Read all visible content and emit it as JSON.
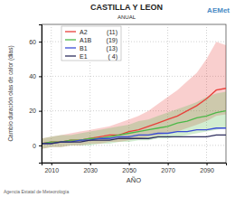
{
  "chart_data": {
    "type": "line",
    "title": "CASTILLA Y LEON",
    "subtitle": "ANUAL",
    "x_label": "AÑO",
    "y_label": "Cambio duración olas de calor (días)",
    "source": "Agencia Estatal de Meteorología",
    "brand": "AEMet",
    "x": [
      2005,
      2010,
      2015,
      2020,
      2025,
      2030,
      2035,
      2040,
      2045,
      2050,
      2055,
      2060,
      2065,
      2070,
      2075,
      2080,
      2085,
      2090,
      2095,
      2100
    ],
    "xlim": [
      2005,
      2100
    ],
    "xticks": [
      2010,
      2030,
      2050,
      2070,
      2090
    ],
    "ylim": [
      -10,
      70
    ],
    "yticks": [
      0,
      20,
      40,
      60
    ],
    "grid": true,
    "legend": "upper left",
    "series": [
      {
        "name": "A2",
        "count": "(11)",
        "color": "#e8403a",
        "values": [
          1,
          2,
          2,
          3,
          3,
          4,
          5,
          6,
          6,
          8,
          9,
          11,
          13,
          15,
          17,
          20,
          23,
          27,
          32,
          33
        ],
        "low": [
          -2,
          -1,
          -1,
          0,
          0,
          1,
          1,
          2,
          2,
          3,
          4,
          5,
          6,
          7,
          8,
          10,
          12,
          14,
          17,
          18
        ],
        "high": [
          4,
          5,
          6,
          7,
          8,
          9,
          10,
          11,
          13,
          15,
          17,
          20,
          24,
          28,
          32,
          37,
          42,
          50,
          60,
          58
        ]
      },
      {
        "name": "A1B",
        "count": "(19)",
        "color": "#4cb848",
        "values": [
          1,
          2,
          2,
          3,
          3,
          4,
          4,
          5,
          6,
          7,
          8,
          9,
          10,
          11,
          13,
          14,
          16,
          17,
          19,
          20
        ],
        "low": [
          -2,
          -1,
          -1,
          0,
          0,
          0,
          1,
          1,
          2,
          2,
          3,
          3,
          4,
          4,
          5,
          6,
          7,
          8,
          9,
          10
        ],
        "high": [
          4,
          5,
          6,
          6,
          7,
          8,
          9,
          10,
          11,
          12,
          14,
          15,
          17,
          19,
          21,
          23,
          25,
          28,
          30,
          31
        ]
      },
      {
        "name": "B1",
        "count": "(13)",
        "color": "#3a4dd6",
        "values": [
          1,
          1,
          2,
          2,
          3,
          3,
          4,
          4,
          5,
          5,
          6,
          6,
          7,
          7,
          8,
          8,
          9,
          9,
          10,
          10
        ]
      },
      {
        "name": "E1",
        "count": "( 4)",
        "color": "#2e2e5e",
        "values": [
          1,
          1,
          2,
          2,
          2,
          3,
          3,
          3,
          4,
          4,
          4,
          4,
          5,
          5,
          5,
          5,
          5,
          5,
          6,
          6
        ]
      }
    ]
  }
}
